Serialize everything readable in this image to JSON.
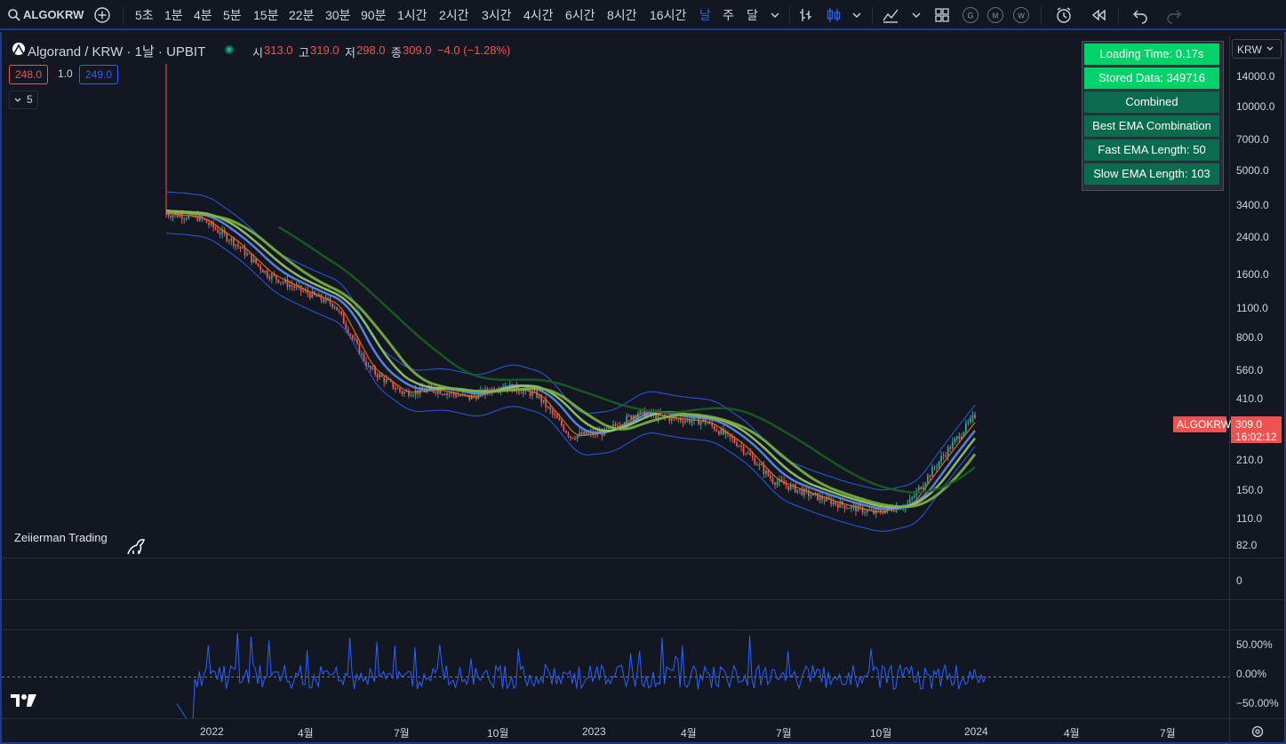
{
  "topbar": {
    "symbol": "ALGOKRW",
    "intervals": [
      "5초",
      "1분",
      "4분",
      "5분",
      "15분",
      "22분",
      "30분",
      "90분",
      "1시간",
      "2시간",
      "3시간",
      "4시간",
      "6시간",
      "8시간",
      "16시간",
      "날",
      "주",
      "달"
    ],
    "active_interval": "날",
    "compare_icons": [
      "G",
      "M",
      "W"
    ]
  },
  "legend": {
    "title": "Algorand / KRW · 1날 · UPBIT",
    "o_label": "시",
    "o_value": "313.0",
    "h_label": "고",
    "h_value": "319.0",
    "l_label": "저",
    "l_value": "298.0",
    "c_label": "종",
    "c_value": "309.0",
    "change": "−4.0 (−1.28%)",
    "bid": "248.0",
    "spread": "1.0",
    "ask": "249.0",
    "collapse_count": "5"
  },
  "watermark": "Zeiierman Trading",
  "panel": {
    "loading_time": "Loading Time: 0.17s",
    "stored_data": "Stored Data: 349716",
    "combined": "Combined",
    "best": "Best EMA Combination",
    "fast": "Fast EMA Length: 50",
    "slow": "Slow EMA Length: 103"
  },
  "price_scale": {
    "currency": "KRW",
    "labels": [
      "14000.0",
      "10000.0",
      "7000.0",
      "5000.0",
      "3400.0",
      "2400.0",
      "1600.0",
      "1100.0",
      "800.0",
      "560.0",
      "410.0",
      "210.0",
      "150.0",
      "110.0",
      "82.0"
    ],
    "last_price": "309.0",
    "countdown": "16:02:12",
    "symbol_tag": "ALGOKRW",
    "mid_pane_label": "0",
    "osc_labels": [
      "50.00%",
      "0.00%",
      "−50.00%"
    ]
  },
  "time_axis": [
    "2022",
    "4월",
    "7월",
    "10월",
    "2023",
    "4월",
    "7월",
    "10월",
    "2024",
    "4월",
    "7월"
  ],
  "colors": {
    "accent": "#2962ff",
    "down": "#ef5350",
    "up": "#26a69a",
    "panel_green": "#00d26a",
    "panel_dark": "#0b6b4e"
  },
  "chart_data": {
    "type": "line",
    "title": "Algorand / KRW · 1날 · UPBIT",
    "y_scale": "log",
    "ylim": [
      82,
      14000
    ],
    "x": [
      "2021-11",
      "2022-01",
      "2022-02",
      "2022-03",
      "2022-04",
      "2022-05",
      "2022-06",
      "2022-07",
      "2022-08",
      "2022-09",
      "2022-10",
      "2022-11",
      "2022-12",
      "2023-01",
      "2023-02",
      "2023-03",
      "2023-04",
      "2023-05",
      "2023-06",
      "2023-07",
      "2023-08",
      "2023-09",
      "2023-10",
      "2023-11",
      "2023-12"
    ],
    "series": [
      {
        "values": [
          2400,
          2300,
          1800,
          1300,
          1100,
          950,
          500,
          390,
          400,
          370,
          420,
          380,
          250,
          260,
          320,
          300,
          290,
          230,
          160,
          140,
          125,
          115,
          125,
          200,
          309
        ]
      },
      {
        "values": [
          null,
          null,
          null,
          null,
          null,
          null,
          null,
          null,
          null,
          null,
          null,
          null,
          null,
          null,
          null,
          null,
          null,
          null,
          null,
          null,
          null,
          null,
          null,
          225,
          235
        ]
      }
    ],
    "oscillator": {
      "ylim": [
        -75,
        75
      ],
      "labels": [
        "50.00%",
        "0.00%",
        "−50.00%"
      ]
    }
  }
}
